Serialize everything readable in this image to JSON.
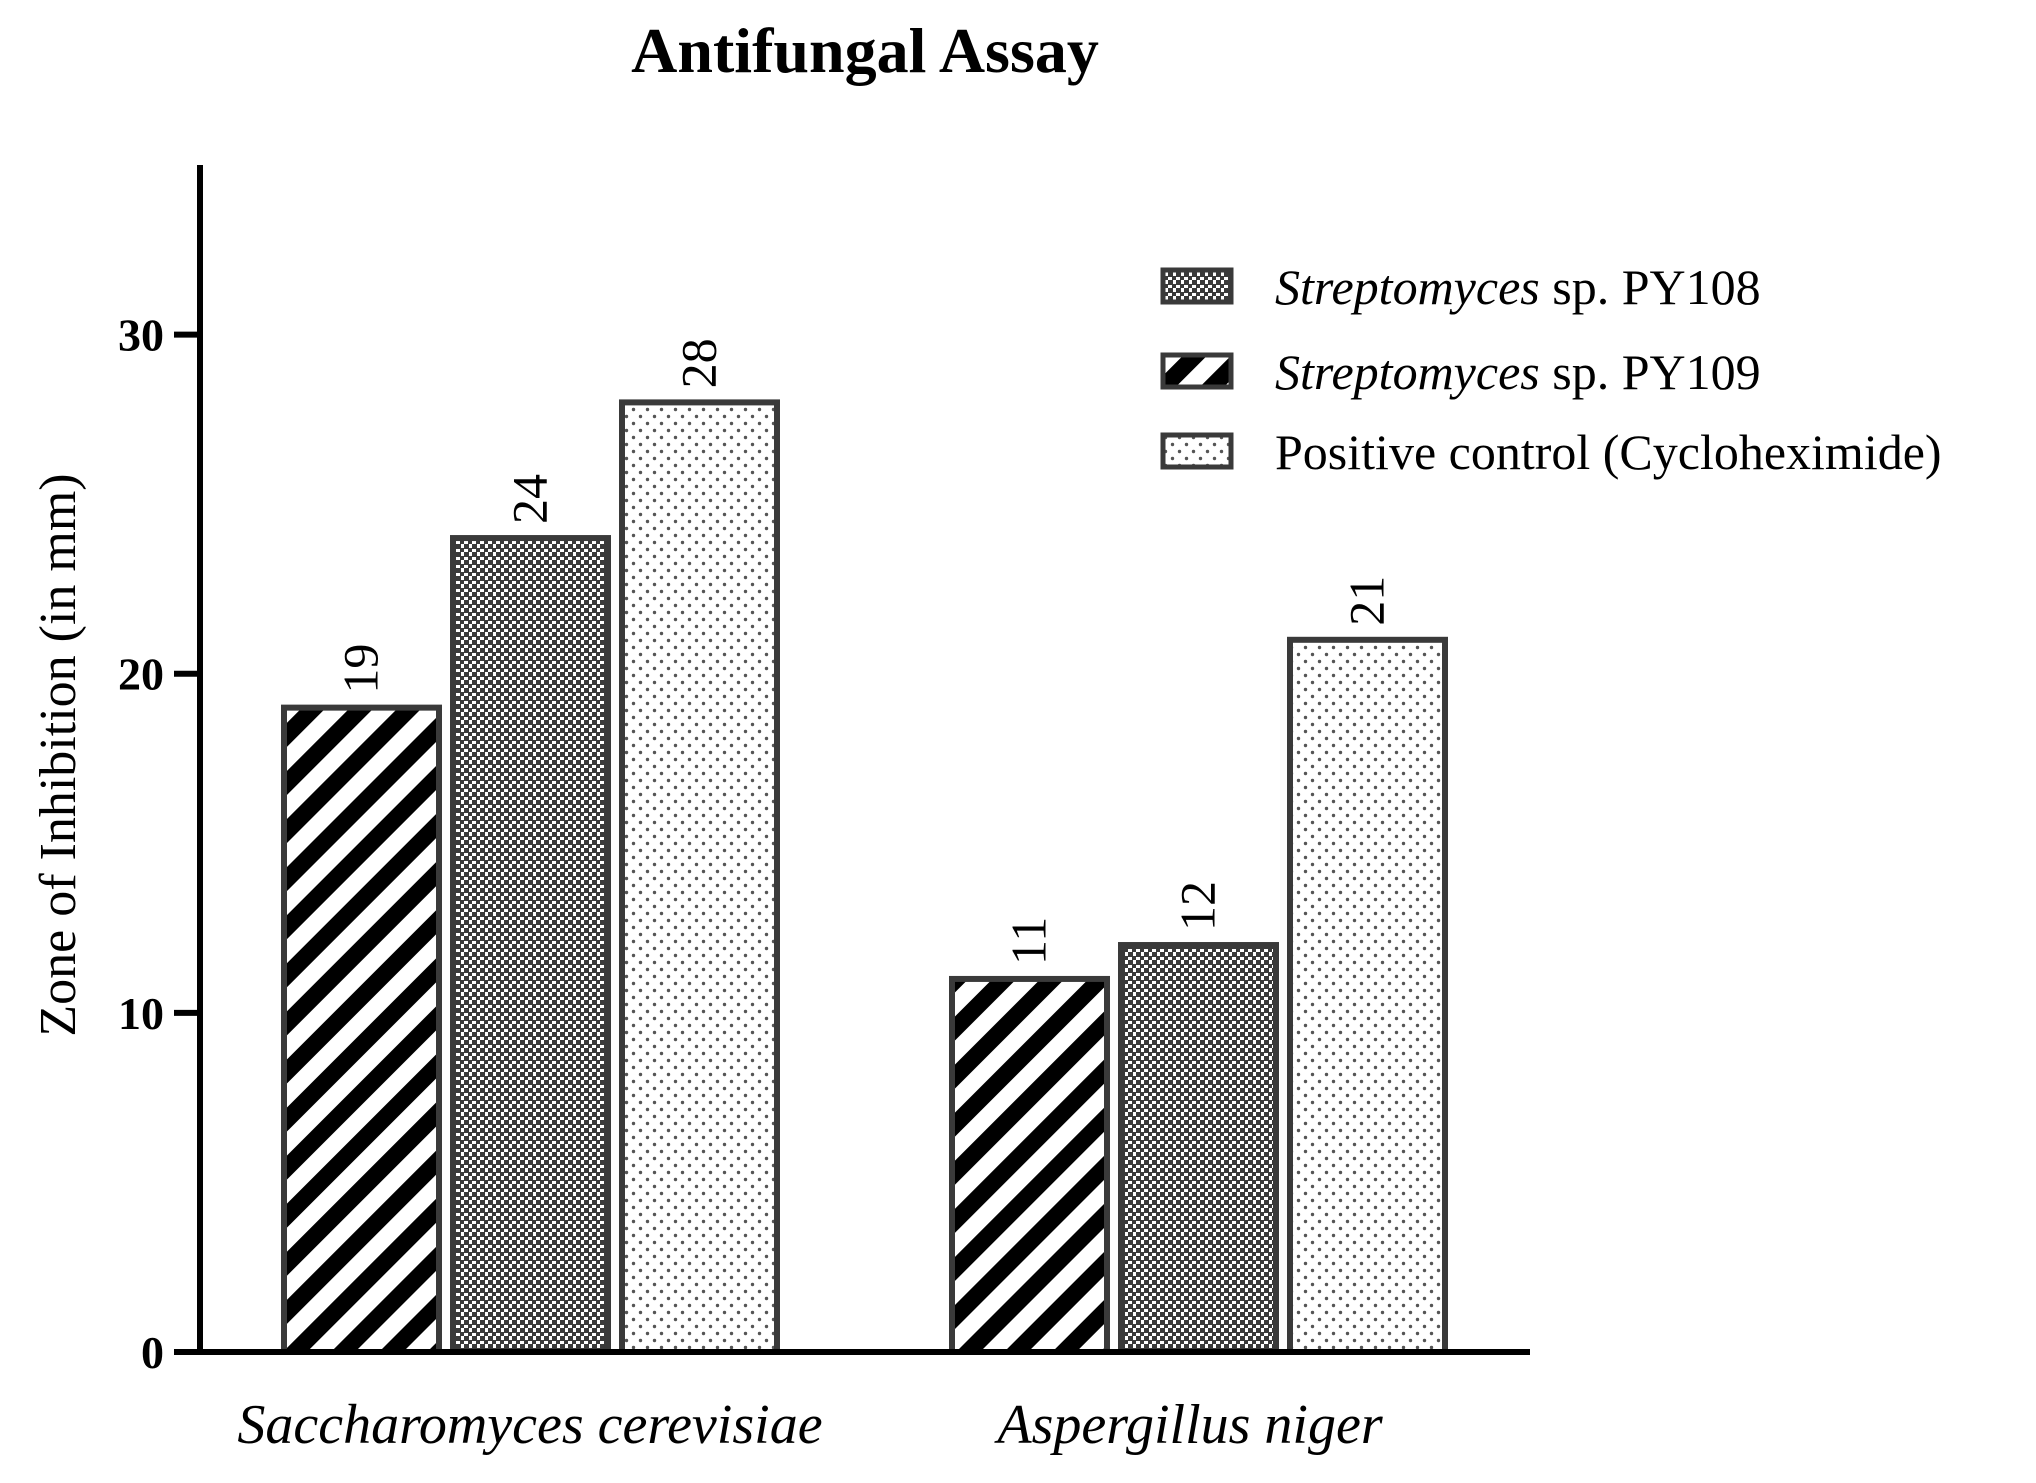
{
  "chart_data": {
    "type": "bar",
    "title": "Antifungal Assay",
    "xlabel": "",
    "ylabel": "Zone of Inhibition (in mm)",
    "ylim": [
      0,
      35
    ],
    "yticks": [
      0,
      10,
      20,
      30
    ],
    "ytick_labels": [
      "0",
      "10",
      "20",
      "30"
    ],
    "categories": [
      "Saccharomyces cerevisiae",
      "Aspergillus niger"
    ],
    "series": [
      {
        "name": "Streptomyces sp. PY109",
        "name_italic": "Streptomyces",
        "name_rest": " sp. PY109",
        "pattern": "diagonal-stripes",
        "values": [
          19,
          11
        ],
        "labels": [
          "19",
          "11"
        ]
      },
      {
        "name": "Streptomyces sp. PY108",
        "name_italic": "Streptomyces",
        "name_rest": " sp. PY108",
        "pattern": "dense-dots",
        "values": [
          24,
          12
        ],
        "labels": [
          "24",
          "12"
        ]
      },
      {
        "name": "Positive control (Cycloheximide)",
        "name_italic": "",
        "name_rest": "Positive control (Cycloheximide)",
        "pattern": "sparse-dots",
        "values": [
          28,
          21
        ],
        "labels": [
          "28",
          "21"
        ]
      }
    ],
    "legend": {
      "position": "top-right",
      "order": [
        1,
        0,
        2
      ]
    },
    "colors": {
      "stroke": "#3a3a3a",
      "stripe": "#000000",
      "axis": "#000000",
      "dense_dot": "#3a3a3a",
      "sparse_dot": "#555555"
    }
  }
}
